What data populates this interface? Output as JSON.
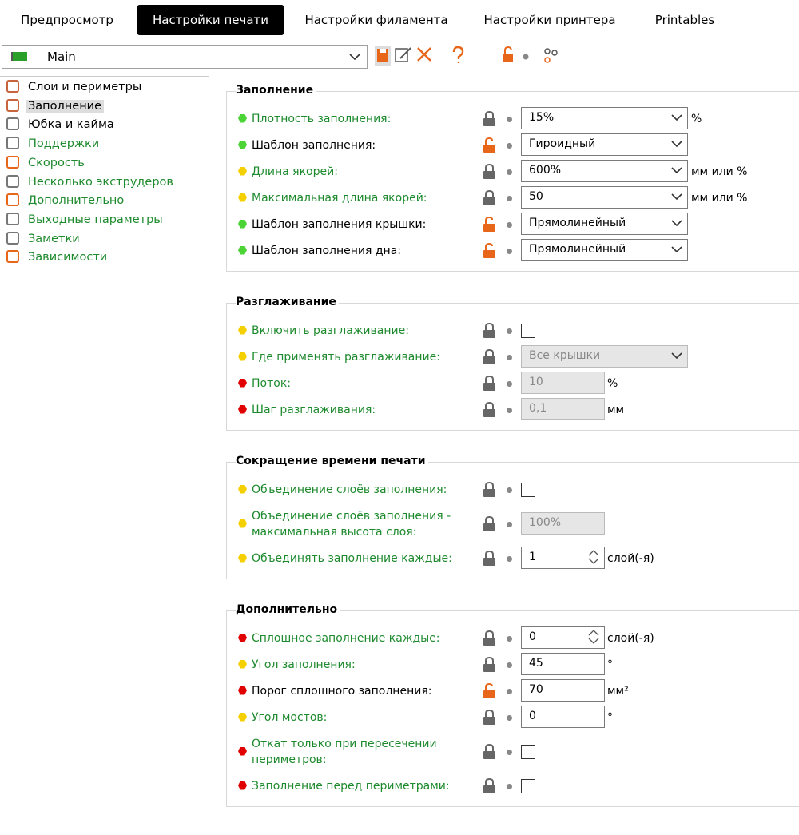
{
  "tabs": [
    "Предпросмотр",
    "Настройки печати",
    "Настройки филамента",
    "Настройки принтера",
    "Printables"
  ],
  "preset": "Main",
  "sidebar": [
    {
      "label": "Слои и периметры",
      "color": "#000000"
    },
    {
      "label": "Заполнение",
      "color": "#000000"
    },
    {
      "label": "Юбка и кайма",
      "color": "#000000"
    },
    {
      "label": "Поддержки",
      "color": "#1e8a2e"
    },
    {
      "label": "Скорость",
      "color": "#1e8a2e"
    },
    {
      "label": "Несколько экструдеров",
      "color": "#1e8a2e"
    },
    {
      "label": "Дополнительно",
      "color": "#1e8a2e"
    },
    {
      "label": "Выходные параметры",
      "color": "#1e8a2e"
    },
    {
      "label": "Заметки",
      "color": "#1e8a2e"
    },
    {
      "label": "Зависимости",
      "color": "#1e8a2e"
    }
  ],
  "sections": [
    {
      "title": "Заполнение",
      "rows": [
        {
          "label": "Плотность заполнения:",
          "label_color": "#1e8a2e",
          "dot": "#4cd437",
          "lock": "closed",
          "control": "combo",
          "value": "15%",
          "unit": "%"
        },
        {
          "label": "Шаблон заполнения:",
          "label_color": "#000000",
          "dot": "#4cd437",
          "lock": "open",
          "control": "combo",
          "value": "Гироидный"
        },
        {
          "label": "Длина якорей:",
          "label_color": "#1e8a2e",
          "dot": "#f5d000",
          "lock": "closed",
          "control": "combo",
          "value": "600%",
          "unit": "мм или %"
        },
        {
          "label": "Максимальная длина якорей:",
          "label_color": "#1e8a2e",
          "dot": "#f5d000",
          "lock": "closed",
          "control": "combo",
          "value": "50",
          "unit": "мм или %"
        },
        {
          "label": "Шаблон заполнения крышки:",
          "label_color": "#000000",
          "dot": "#4cd437",
          "lock": "open",
          "control": "combo",
          "value": "Прямолинейный"
        },
        {
          "label": "Шаблон заполнения дна:",
          "label_color": "#000000",
          "dot": "#4cd437",
          "lock": "open",
          "control": "combo",
          "value": "Прямолинейный"
        }
      ]
    },
    {
      "title": "Разглаживание",
      "rows": [
        {
          "label": "Включить разглаживание:",
          "label_color": "#1e8a2e",
          "dot": "#f5d000",
          "lock": "closed",
          "control": "checkbox"
        },
        {
          "label": "Где применять разглаживание:",
          "label_color": "#1e8a2e",
          "dot": "#f5d000",
          "lock": "closed",
          "control": "combo",
          "value": "Все крышки",
          "disabled": true
        },
        {
          "label": "Поток:",
          "label_color": "#1e8a2e",
          "dot": "#e00000",
          "lock": "closed",
          "control": "text",
          "value": "10",
          "unit": "%",
          "disabled": true
        },
        {
          "label": "Шаг разглаживания:",
          "label_color": "#1e8a2e",
          "dot": "#e00000",
          "lock": "closed",
          "control": "text",
          "value": "0,1",
          "unit": "мм",
          "disabled": true
        }
      ]
    },
    {
      "title": "Сокращение времени печати",
      "rows": [
        {
          "label": "Объединение слоёв заполнения:",
          "label_color": "#1e8a2e",
          "dot": "#f5d000",
          "lock": "closed",
          "control": "checkbox"
        },
        {
          "label": "Объединение слоёв заполнения - максимальная высота слоя:",
          "label_color": "#1e8a2e",
          "dot": "#f5d000",
          "lock": "closed",
          "control": "text",
          "value": "100%",
          "disabled": true,
          "tall": true
        },
        {
          "label": "Объединять заполнение каждые:",
          "label_color": "#1e8a2e",
          "dot": "#f5d000",
          "lock": "closed",
          "control": "spin",
          "value": "1",
          "unit": "слой(-я)"
        }
      ]
    },
    {
      "title": "Дополнительно",
      "rows": [
        {
          "label": "Сплошное заполнение каждые:",
          "label_color": "#1e8a2e",
          "dot": "#e00000",
          "lock": "closed",
          "control": "spin",
          "value": "0",
          "unit": "слой(-я)"
        },
        {
          "label": "Угол заполнения:",
          "label_color": "#1e8a2e",
          "dot": "#f5d000",
          "lock": "closed",
          "control": "text",
          "value": "45",
          "unit": "°"
        },
        {
          "label": "Порог сплошного заполнения:",
          "label_color": "#000000",
          "dot": "#e00000",
          "lock": "open",
          "control": "text",
          "value": "70",
          "unit": "мм²"
        },
        {
          "label": "Угол мостов:",
          "label_color": "#1e8a2e",
          "dot": "#f5d000",
          "lock": "closed",
          "control": "text",
          "value": "0",
          "unit": "°"
        },
        {
          "label": "Откат только при пересечении периметров:",
          "label_color": "#1e8a2e",
          "dot": "#e00000",
          "lock": "closed",
          "control": "checkbox",
          "tall": true
        },
        {
          "label": "Заполнение перед периметрами:",
          "label_color": "#1e8a2e",
          "dot": "#e00000",
          "lock": "closed",
          "control": "checkbox"
        }
      ]
    }
  ]
}
